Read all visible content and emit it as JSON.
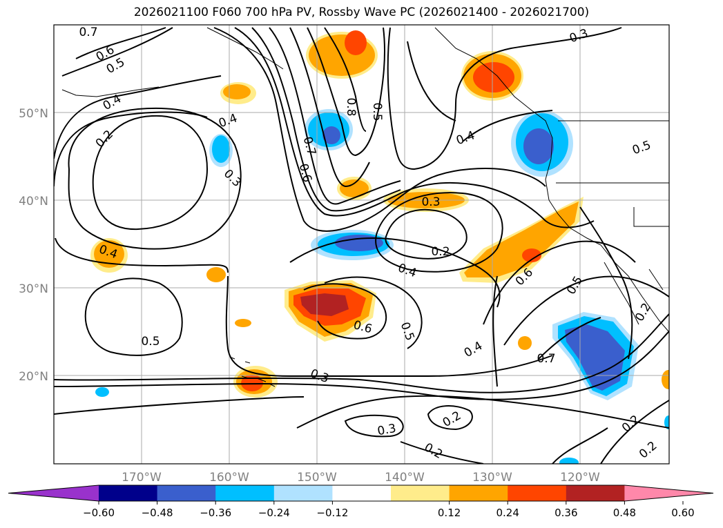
{
  "title": "2026021100 F060 700 hPa PV, Rossby Wave PC (2026021400 - 2026021700)",
  "map": {
    "lat_labels": [
      "50°N",
      "40°N",
      "30°N",
      "20°N"
    ],
    "lon_labels": [
      "170°W",
      "160°W",
      "150°W",
      "140°W",
      "130°W",
      "120°W"
    ],
    "graticule_color": "#aaaaaa",
    "contour_color": "#000000"
  },
  "contour_labels": [
    {
      "text": "0.7"
    },
    {
      "text": "0.6"
    },
    {
      "text": "0.5"
    },
    {
      "text": "0.4"
    },
    {
      "text": "0.2"
    },
    {
      "text": "0.4"
    },
    {
      "text": "0.3"
    },
    {
      "text": "0.8"
    },
    {
      "text": "0.5"
    },
    {
      "text": "0.7"
    },
    {
      "text": "0.6"
    },
    {
      "text": "0.3"
    },
    {
      "text": "0.4"
    },
    {
      "text": "0.5"
    },
    {
      "text": "0.4"
    },
    {
      "text": "0.3"
    },
    {
      "text": "0.2"
    },
    {
      "text": "0.4"
    },
    {
      "text": "0.6"
    },
    {
      "text": "0.5"
    },
    {
      "text": "0.6"
    },
    {
      "text": "0.5"
    },
    {
      "text": "0.4"
    },
    {
      "text": "0.7"
    },
    {
      "text": "0.5"
    },
    {
      "text": "0.3"
    },
    {
      "text": "0.3"
    },
    {
      "text": "0.2"
    },
    {
      "text": "0.2"
    },
    {
      "text": "0.2"
    },
    {
      "text": "0.2"
    },
    {
      "text": "0.2"
    }
  ],
  "colorbar": {
    "ticks": [
      "−0.60",
      "−0.48",
      "−0.36",
      "−0.24",
      "−0.12",
      "0.12",
      "0.24",
      "0.36",
      "0.48",
      "0.60"
    ],
    "colors": [
      "#9932cc",
      "#00008b",
      "#3a5fcd",
      "#00bfff",
      "#b0e2ff",
      "#ffffff",
      "#ffec8b",
      "#ffa500",
      "#ff4500",
      "#b22222",
      "#ff88aa"
    ]
  }
}
